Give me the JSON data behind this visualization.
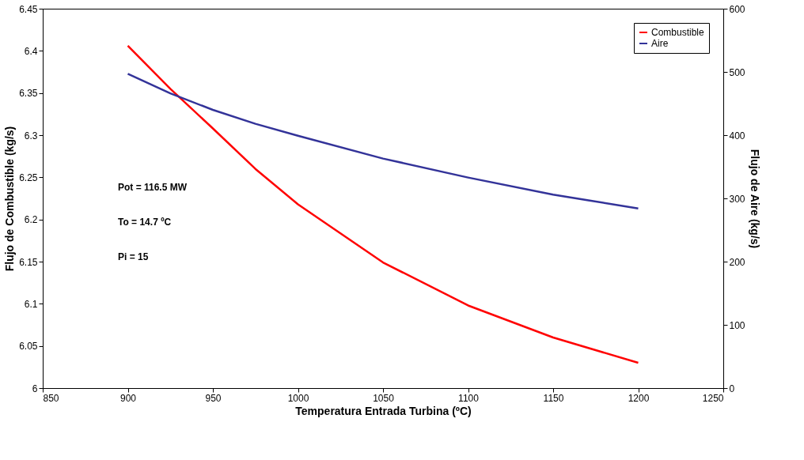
{
  "chart_data": {
    "type": "line",
    "xlabel": "Temperatura Entrada Turbina (ºC)",
    "ylabel": "Flujo de Combustible (kg/s)",
    "y2label": "Flujo de Aire (kg/s)",
    "x": [
      900,
      925,
      950,
      975,
      1000,
      1050,
      1100,
      1150,
      1200
    ],
    "series": [
      {
        "name": "Combustible",
        "color": "#ff0000",
        "values": [
          6.406,
          6.355,
          6.308,
          6.26,
          6.218,
          6.149,
          6.098,
          6.06,
          6.03
        ]
      },
      {
        "name": "Aire",
        "color": "#333399",
        "axis": "y2",
        "values": [
          497,
          466,
          440,
          418,
          399,
          363,
          333,
          306,
          284
        ]
      }
    ],
    "xlim": [
      850,
      1250
    ],
    "xticks": [
      850,
      900,
      950,
      1000,
      1050,
      1100,
      1150,
      1200,
      1250
    ],
    "ylim": [
      6,
      6.45
    ],
    "yticks": [
      6,
      6.05,
      6.1,
      6.15,
      6.2,
      6.25,
      6.3,
      6.35,
      6.4,
      6.45
    ],
    "y2lim": [
      0,
      600
    ],
    "y2ticks": [
      0,
      100,
      200,
      300,
      400,
      500,
      600
    ],
    "annotations": [
      "Pot = 116.5 MW",
      "To = 14.7 ºC",
      "Pi = 15"
    ],
    "legend": "top right",
    "grid": false,
    "marker": "none",
    "line_style": "solid"
  }
}
